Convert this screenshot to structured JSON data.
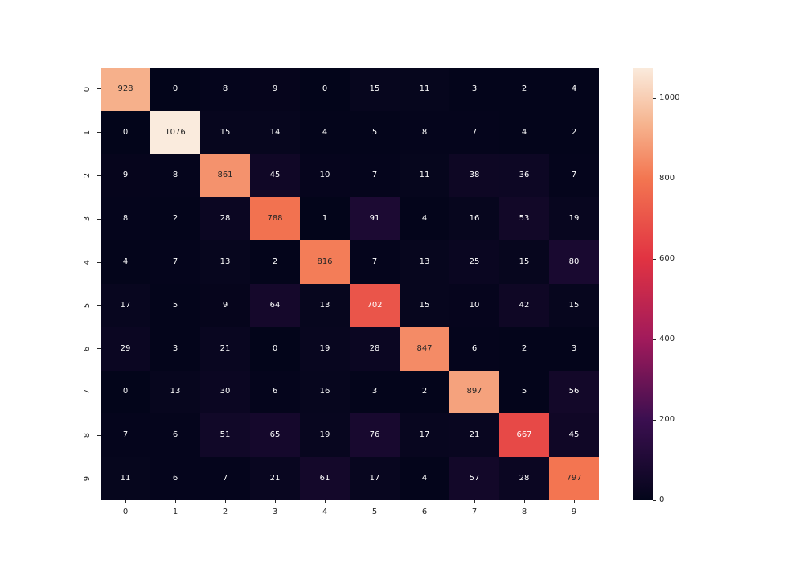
{
  "figure": {
    "background": "#ffffff"
  },
  "chart_data": {
    "type": "heatmap",
    "title": "",
    "xlabel": "",
    "ylabel": "",
    "x_categories": [
      "0",
      "1",
      "2",
      "3",
      "4",
      "5",
      "6",
      "7",
      "8",
      "9"
    ],
    "y_categories": [
      "0",
      "1",
      "2",
      "3",
      "4",
      "5",
      "6",
      "7",
      "8",
      "9"
    ],
    "matrix": [
      [
        928,
        0,
        8,
        9,
        0,
        15,
        11,
        3,
        2,
        4
      ],
      [
        0,
        1076,
        15,
        14,
        4,
        5,
        8,
        7,
        4,
        2
      ],
      [
        9,
        8,
        861,
        45,
        10,
        7,
        11,
        38,
        36,
        7
      ],
      [
        8,
        2,
        28,
        788,
        1,
        91,
        4,
        16,
        53,
        19
      ],
      [
        4,
        7,
        13,
        2,
        816,
        7,
        13,
        25,
        15,
        80
      ],
      [
        17,
        5,
        9,
        64,
        13,
        702,
        15,
        10,
        42,
        15
      ],
      [
        29,
        3,
        21,
        0,
        19,
        28,
        847,
        6,
        2,
        3
      ],
      [
        0,
        13,
        30,
        6,
        16,
        3,
        2,
        897,
        5,
        56
      ],
      [
        7,
        6,
        51,
        65,
        19,
        76,
        17,
        21,
        667,
        45
      ],
      [
        11,
        6,
        7,
        21,
        61,
        17,
        4,
        57,
        28,
        797
      ]
    ],
    "vmin": 0,
    "vmax": 1076,
    "grid": false,
    "legend": false,
    "colorbar": {
      "position": "right",
      "ticks": [
        0,
        200,
        400,
        600,
        800,
        1000
      ]
    },
    "colormap": {
      "name": "rocket",
      "stops": [
        [
          0.0,
          "#03051A"
        ],
        [
          0.186,
          "#3B0F50"
        ],
        [
          0.372,
          "#A11A5B"
        ],
        [
          0.558,
          "#E13342"
        ],
        [
          0.744,
          "#F37651"
        ],
        [
          0.87,
          "#F6B48F"
        ],
        [
          1.0,
          "#FAEBDD"
        ]
      ]
    },
    "annotation_colors": {
      "light": "#FFFFFF",
      "dark": "#262626",
      "dark_threshold": 0.7
    }
  }
}
